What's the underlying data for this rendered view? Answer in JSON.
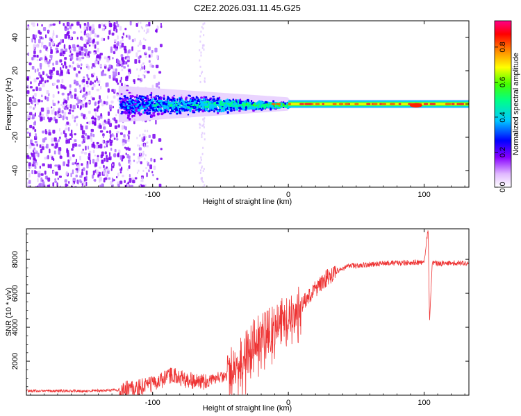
{
  "title": "C2E2.2026.031.11.45.G25",
  "chart_data": [
    {
      "type": "heatmap",
      "title": "C2E2.2026.031.11.45.G25",
      "xlabel": "Height of straight line (km)",
      "ylabel": "Frequency (Hz)",
      "xlim": [
        -193,
        133
      ],
      "ylim": [
        -50,
        50
      ],
      "xticks": [
        -100,
        0,
        100
      ],
      "yticks": [
        -40,
        -20,
        0,
        20,
        40
      ],
      "colorbar": {
        "label": "Normalized spectral amplitude",
        "range": [
          0,
          0.95
        ],
        "ticks": [
          0.0,
          0.2,
          0.4,
          0.6,
          0.8
        ],
        "tick_labels": [
          "0.0",
          "0.2",
          "0.4",
          "0.6",
          "0.8"
        ],
        "colormap": [
          "#ffffff",
          "#e8c8ff",
          "#8a00ff",
          "#0000ff",
          "#00c8ff",
          "#00ff80",
          "#80ff00",
          "#ffff00",
          "#ff8000",
          "#ff0000",
          "#ff0080"
        ]
      },
      "features": {
        "noise_region_x": [
          -193,
          -102
        ],
        "narrowing_band_x": [
          -125,
          0
        ],
        "carrier_line_x": [
          0,
          133
        ],
        "carrier_frequency": 0
      }
    },
    {
      "type": "line",
      "xlabel": "Height of straight line (km)",
      "ylabel": "SNR (10 * v/v)",
      "xlim": [
        -193,
        133
      ],
      "ylim": [
        0,
        9800
      ],
      "xticks": [
        -100,
        0,
        100
      ],
      "yticks": [
        2000,
        4000,
        6000,
        8000
      ],
      "series": [
        {
          "name": "SNR",
          "color": "#ee3333",
          "x": [
            -193,
            -150,
            -125,
            -110,
            -95,
            -85,
            -75,
            -60,
            -45,
            -35,
            -25,
            -15,
            -5,
            5,
            15,
            25,
            35,
            45,
            60,
            75,
            90,
            100,
            103,
            104,
            106,
            115,
            125,
            133
          ],
          "y": [
            250,
            250,
            300,
            450,
            800,
            1200,
            900,
            800,
            1200,
            2000,
            3200,
            3800,
            4300,
            4900,
            5800,
            6700,
            7300,
            7600,
            7700,
            7800,
            7800,
            7850,
            9800,
            4300,
            7800,
            7750,
            7800,
            7750
          ]
        }
      ]
    }
  ]
}
